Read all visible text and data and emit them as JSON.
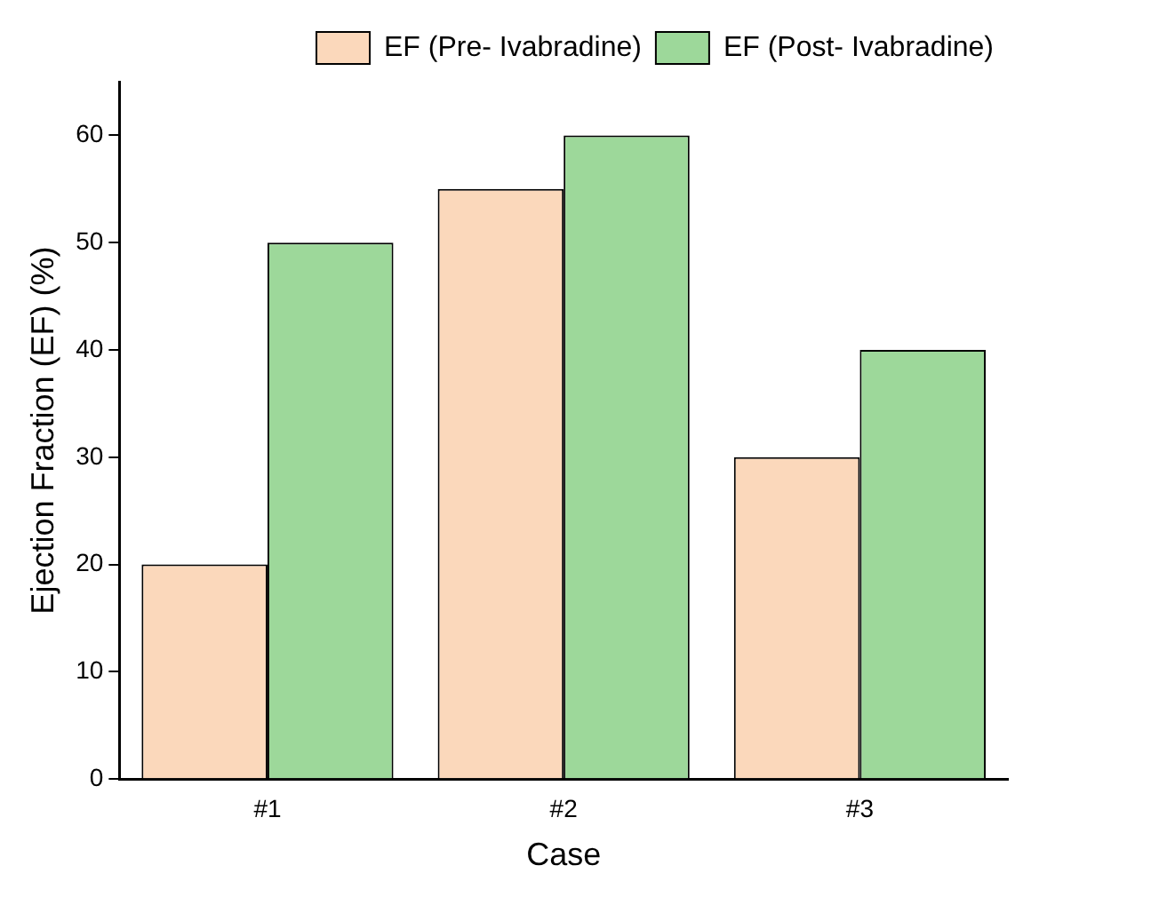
{
  "chart_data": {
    "type": "bar",
    "xlabel": "Case",
    "ylabel": "Ejection Fraction (EF) (%)",
    "categories": [
      "#1",
      "#2",
      "#3"
    ],
    "series": [
      {
        "name": "EF (Pre- Ivabradine)",
        "color": "#fbd8bb",
        "values": [
          20,
          55,
          30
        ]
      },
      {
        "name": "EF (Post- Ivabradine)",
        "color": "#9dd89a",
        "values": [
          50,
          60,
          40
        ]
      }
    ],
    "ylim": [
      0,
      65
    ],
    "yticks": [
      0,
      10,
      20,
      30,
      40,
      50,
      60
    ],
    "grid": false,
    "legend": "top right"
  }
}
